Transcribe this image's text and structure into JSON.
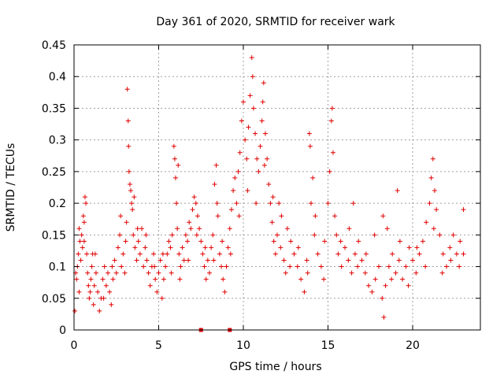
{
  "chart_data": {
    "type": "scatter",
    "title": "Day 361 of 2020, SRMTID for receiver wark",
    "xlabel": "GPS time / hours",
    "ylabel": "SRMTID / TECUs",
    "xlim": [
      0,
      24
    ],
    "ylim": [
      0,
      0.45
    ],
    "xticks": [
      0,
      5,
      10,
      15,
      20
    ],
    "xtick_labels": [
      "0",
      "5",
      "10",
      "15",
      "20"
    ],
    "yticks": [
      0,
      0.05,
      0.1,
      0.15,
      0.2,
      0.25,
      0.3,
      0.35,
      0.4,
      0.45
    ],
    "ytick_labels": [
      "0",
      "0.05",
      "0.1",
      "0.15",
      "0.2",
      "0.25",
      "0.3",
      "0.35",
      "0.4",
      "0.45"
    ],
    "grid": true,
    "marker": "plus",
    "color": "#e00000",
    "series": [
      {
        "name": "SRMTID",
        "points": [
          [
            0.05,
            0.03
          ],
          [
            0.1,
            0.09
          ],
          [
            0.15,
            0.08
          ],
          [
            0.2,
            0.1
          ],
          [
            0.25,
            0.12
          ],
          [
            0.3,
            0.16
          ],
          [
            0.35,
            0.14
          ],
          [
            0.4,
            0.11
          ],
          [
            0.45,
            0.15
          ],
          [
            0.5,
            0.13
          ],
          [
            0.55,
            0.18
          ],
          [
            0.6,
            0.17
          ],
          [
            0.65,
            0.21
          ],
          [
            0.7,
            0.2
          ],
          [
            0.75,
            0.12
          ],
          [
            0.8,
            0.09
          ],
          [
            0.85,
            0.07
          ],
          [
            0.9,
            0.05
          ],
          [
            0.95,
            0.06
          ],
          [
            1.0,
            0.08
          ],
          [
            1.05,
            0.1
          ],
          [
            1.1,
            0.12
          ],
          [
            1.15,
            0.04
          ],
          [
            1.2,
            0.07
          ],
          [
            1.3,
            0.09
          ],
          [
            1.4,
            0.06
          ],
          [
            1.5,
            0.03
          ],
          [
            1.6,
            0.05
          ],
          [
            1.7,
            0.08
          ],
          [
            1.8,
            0.1
          ],
          [
            1.9,
            0.07
          ],
          [
            2.0,
            0.09
          ],
          [
            2.1,
            0.06
          ],
          [
            2.2,
            0.04
          ],
          [
            2.3,
            0.08
          ],
          [
            2.4,
            0.11
          ],
          [
            2.5,
            0.09
          ],
          [
            2.6,
            0.13
          ],
          [
            2.7,
            0.15
          ],
          [
            2.8,
            0.1
          ],
          [
            2.9,
            0.12
          ],
          [
            3.0,
            0.09
          ],
          [
            3.05,
            0.14
          ],
          [
            3.1,
            0.17
          ],
          [
            3.15,
            0.38
          ],
          [
            3.2,
            0.33
          ],
          [
            3.22,
            0.29
          ],
          [
            3.25,
            0.25
          ],
          [
            3.3,
            0.23
          ],
          [
            3.35,
            0.22
          ],
          [
            3.4,
            0.2
          ],
          [
            3.5,
            0.15
          ],
          [
            3.6,
            0.13
          ],
          [
            3.7,
            0.11
          ],
          [
            3.8,
            0.14
          ],
          [
            3.9,
            0.12
          ],
          [
            4.0,
            0.16
          ],
          [
            4.1,
            0.1
          ],
          [
            4.2,
            0.13
          ],
          [
            4.3,
            0.11
          ],
          [
            4.4,
            0.09
          ],
          [
            4.5,
            0.07
          ],
          [
            4.6,
            0.1
          ],
          [
            4.7,
            0.12
          ],
          [
            4.8,
            0.08
          ],
          [
            4.9,
            0.06
          ],
          [
            5.0,
            0.09
          ],
          [
            5.1,
            0.11
          ],
          [
            5.2,
            0.05
          ],
          [
            5.3,
            0.08
          ],
          [
            5.4,
            0.1
          ],
          [
            5.5,
            0.12
          ],
          [
            5.6,
            0.14
          ],
          [
            5.7,
            0.13
          ],
          [
            5.8,
            0.15
          ],
          [
            5.9,
            0.29
          ],
          [
            5.95,
            0.27
          ],
          [
            6.0,
            0.24
          ],
          [
            6.05,
            0.2
          ],
          [
            6.1,
            0.16
          ],
          [
            6.2,
            0.12
          ],
          [
            6.3,
            0.1
          ],
          [
            6.4,
            0.13
          ],
          [
            6.5,
            0.11
          ],
          [
            6.6,
            0.15
          ],
          [
            6.7,
            0.14
          ],
          [
            6.8,
            0.17
          ],
          [
            6.9,
            0.16
          ],
          [
            7.0,
            0.19
          ],
          [
            7.1,
            0.21
          ],
          [
            7.2,
            0.2
          ],
          [
            7.3,
            0.18
          ],
          [
            7.4,
            0.16
          ],
          [
            7.5,
            0.14
          ],
          [
            7.6,
            0.12
          ],
          [
            7.7,
            0.1
          ],
          [
            7.8,
            0.08
          ],
          [
            7.9,
            0.11
          ],
          [
            8.0,
            0.09
          ],
          [
            8.1,
            0.13
          ],
          [
            8.2,
            0.15
          ],
          [
            8.3,
            0.23
          ],
          [
            8.4,
            0.26
          ],
          [
            8.5,
            0.18
          ],
          [
            8.6,
            0.12
          ],
          [
            8.7,
            0.1
          ],
          [
            8.8,
            0.08
          ],
          [
            8.9,
            0.06
          ],
          [
            9.0,
            0.1
          ],
          [
            9.1,
            0.13
          ],
          [
            9.2,
            0.16
          ],
          [
            9.3,
            0.19
          ],
          [
            9.4,
            0.22
          ],
          [
            9.5,
            0.24
          ],
          [
            9.6,
            0.2
          ],
          [
            9.7,
            0.25
          ],
          [
            9.8,
            0.28
          ],
          [
            9.9,
            0.33
          ],
          [
            10.0,
            0.36
          ],
          [
            10.1,
            0.3
          ],
          [
            10.2,
            0.27
          ],
          [
            10.3,
            0.32
          ],
          [
            10.4,
            0.37
          ],
          [
            10.5,
            0.43
          ],
          [
            10.55,
            0.4
          ],
          [
            10.6,
            0.35
          ],
          [
            10.7,
            0.31
          ],
          [
            10.8,
            0.27
          ],
          [
            10.9,
            0.25
          ],
          [
            11.0,
            0.29
          ],
          [
            11.1,
            0.33
          ],
          [
            11.15,
            0.36
          ],
          [
            11.2,
            0.39
          ],
          [
            11.3,
            0.31
          ],
          [
            11.4,
            0.27
          ],
          [
            11.5,
            0.23
          ],
          [
            11.6,
            0.2
          ],
          [
            11.7,
            0.17
          ],
          [
            11.8,
            0.14
          ],
          [
            11.9,
            0.12
          ],
          [
            12.0,
            0.15
          ],
          [
            12.2,
            0.13
          ],
          [
            12.4,
            0.11
          ],
          [
            12.6,
            0.16
          ],
          [
            12.8,
            0.14
          ],
          [
            13.0,
            0.12
          ],
          [
            13.2,
            0.1
          ],
          [
            13.4,
            0.08
          ],
          [
            13.6,
            0.06
          ],
          [
            13.8,
            0.09
          ],
          [
            13.9,
            0.31
          ],
          [
            13.95,
            0.29
          ],
          [
            14.0,
            0.2
          ],
          [
            14.2,
            0.15
          ],
          [
            14.4,
            0.12
          ],
          [
            14.6,
            0.1
          ],
          [
            14.8,
            0.14
          ],
          [
            15.0,
            0.2
          ],
          [
            15.1,
            0.25
          ],
          [
            15.2,
            0.33
          ],
          [
            15.25,
            0.35
          ],
          [
            15.3,
            0.28
          ],
          [
            15.4,
            0.18
          ],
          [
            15.6,
            0.12
          ],
          [
            15.8,
            0.1
          ],
          [
            16.0,
            0.13
          ],
          [
            16.2,
            0.11
          ],
          [
            16.4,
            0.09
          ],
          [
            16.6,
            0.12
          ],
          [
            16.8,
            0.14
          ],
          [
            17.0,
            0.11
          ],
          [
            17.2,
            0.09
          ],
          [
            17.4,
            0.07
          ],
          [
            17.6,
            0.06
          ],
          [
            17.8,
            0.08
          ],
          [
            18.0,
            0.1
          ],
          [
            18.2,
            0.05
          ],
          [
            18.3,
            0.02
          ],
          [
            18.4,
            0.07
          ],
          [
            18.6,
            0.1
          ],
          [
            18.8,
            0.12
          ],
          [
            19.0,
            0.09
          ],
          [
            19.2,
            0.11
          ],
          [
            19.4,
            0.08
          ],
          [
            19.6,
            0.1
          ],
          [
            19.8,
            0.13
          ],
          [
            20.0,
            0.11
          ],
          [
            20.2,
            0.09
          ],
          [
            20.4,
            0.12
          ],
          [
            20.6,
            0.14
          ],
          [
            20.8,
            0.17
          ],
          [
            21.0,
            0.2
          ],
          [
            21.1,
            0.24
          ],
          [
            21.2,
            0.27
          ],
          [
            21.3,
            0.22
          ],
          [
            21.4,
            0.19
          ],
          [
            21.6,
            0.15
          ],
          [
            21.8,
            0.12
          ],
          [
            22.0,
            0.1
          ],
          [
            22.2,
            0.13
          ],
          [
            22.4,
            0.15
          ],
          [
            22.6,
            0.12
          ],
          [
            22.8,
            0.14
          ],
          [
            23.0,
            0.19
          ],
          [
            23.0,
            0.12
          ],
          [
            0.3,
            0.06
          ],
          [
            0.6,
            0.14
          ],
          [
            1.25,
            0.12
          ],
          [
            1.75,
            0.05
          ],
          [
            2.25,
            0.1
          ],
          [
            2.75,
            0.18
          ],
          [
            3.45,
            0.19
          ],
          [
            3.75,
            0.16
          ],
          [
            4.25,
            0.15
          ],
          [
            4.75,
            0.1
          ],
          [
            5.25,
            0.12
          ],
          [
            5.75,
            0.09
          ],
          [
            6.25,
            0.08
          ],
          [
            6.75,
            0.11
          ],
          [
            7.25,
            0.15
          ],
          [
            7.75,
            0.13
          ],
          [
            8.25,
            0.11
          ],
          [
            8.75,
            0.14
          ],
          [
            9.25,
            0.12
          ],
          [
            9.75,
            0.18
          ],
          [
            10.25,
            0.22
          ],
          [
            10.75,
            0.2
          ],
          [
            11.25,
            0.26
          ],
          [
            11.75,
            0.21
          ],
          [
            12.25,
            0.18
          ],
          [
            12.75,
            0.1
          ],
          [
            13.25,
            0.13
          ],
          [
            13.75,
            0.11
          ],
          [
            14.25,
            0.18
          ],
          [
            14.75,
            0.08
          ],
          [
            15.5,
            0.15
          ],
          [
            15.75,
            0.14
          ],
          [
            16.25,
            0.16
          ],
          [
            16.75,
            0.1
          ],
          [
            17.25,
            0.12
          ],
          [
            17.75,
            0.15
          ],
          [
            18.25,
            0.18
          ],
          [
            18.75,
            0.08
          ],
          [
            19.25,
            0.14
          ],
          [
            19.75,
            0.07
          ],
          [
            20.25,
            0.13
          ],
          [
            20.75,
            0.1
          ],
          [
            21.25,
            0.16
          ],
          [
            21.75,
            0.09
          ],
          [
            22.25,
            0.11
          ],
          [
            22.75,
            0.1
          ],
          [
            12.1,
            0.2
          ],
          [
            12.5,
            0.09
          ],
          [
            14.1,
            0.24
          ],
          [
            16.5,
            0.2
          ],
          [
            18.5,
            0.16
          ],
          [
            19.1,
            0.22
          ],
          [
            3.55,
            0.21
          ],
          [
            6.15,
            0.26
          ],
          [
            8.45,
            0.2
          ]
        ]
      }
    ],
    "gap_markers_x": [
      7.5,
      9.2
    ]
  }
}
